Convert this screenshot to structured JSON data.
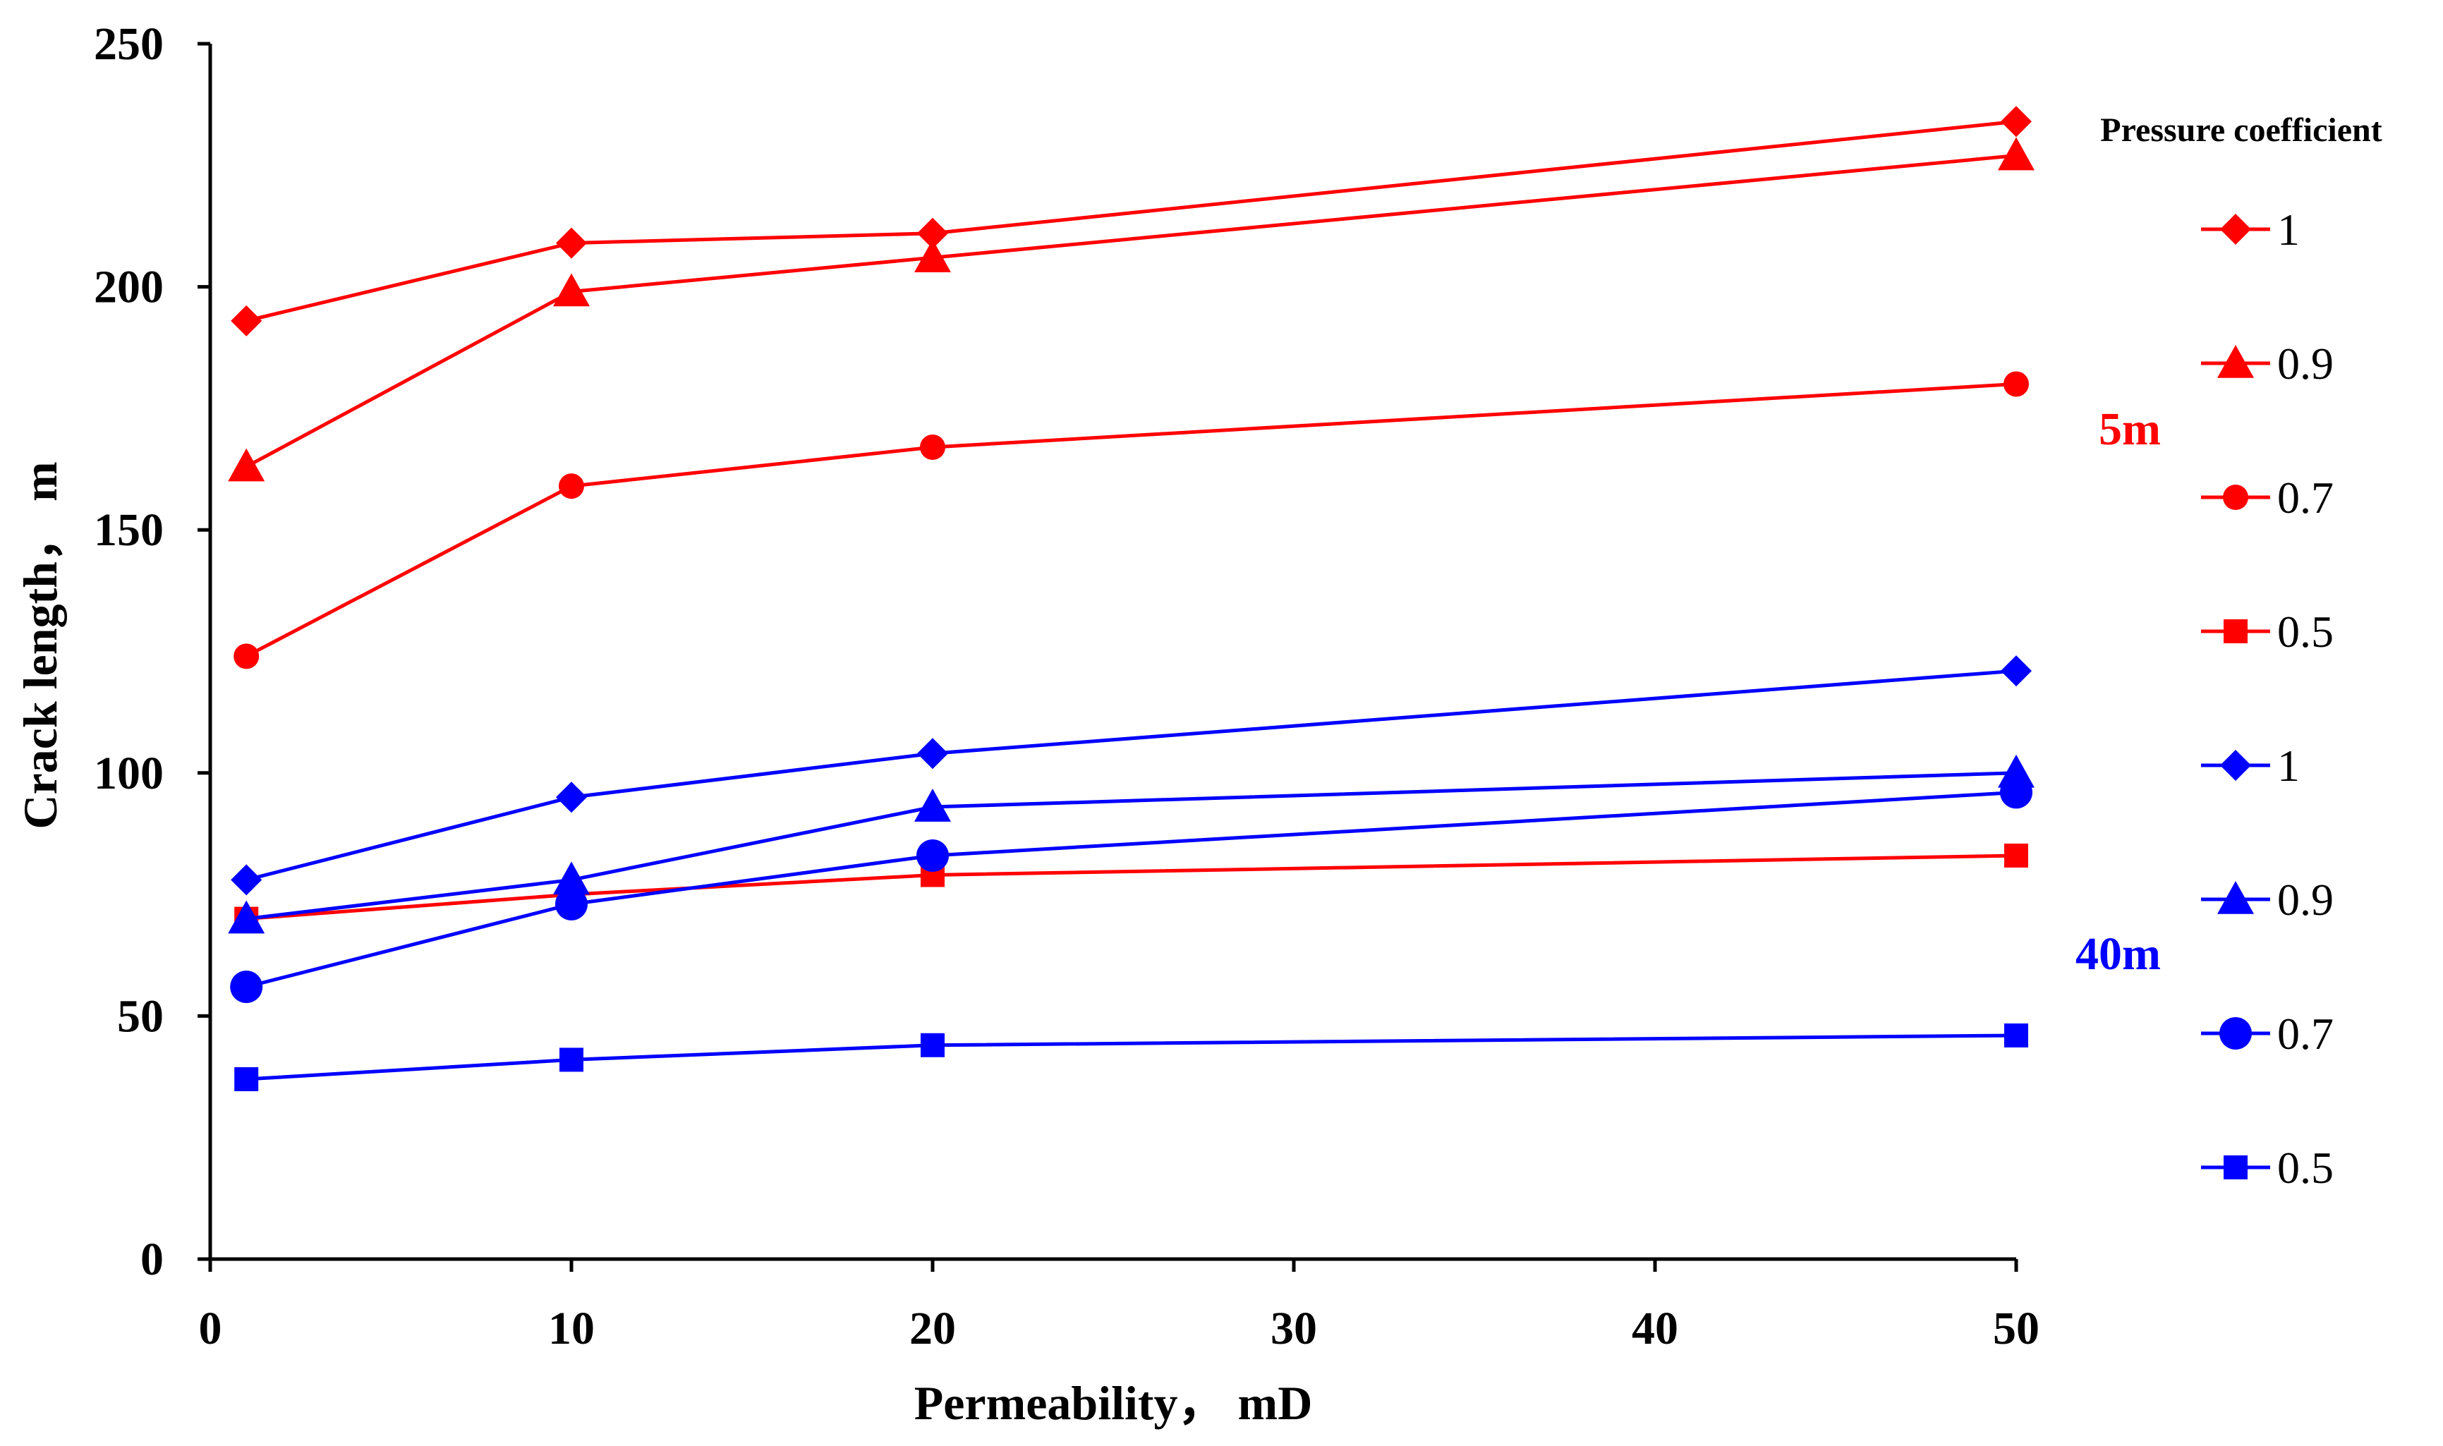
{
  "chart_data": {
    "type": "line",
    "title": "",
    "xlabel": "Permeability， mD",
    "ylabel": "Crack length， m",
    "xlim": [
      0,
      50
    ],
    "ylim": [
      0,
      250
    ],
    "xticks": [
      "0",
      "10",
      "20",
      "30",
      "40",
      "50"
    ],
    "yticks": [
      "0",
      "50",
      "100",
      "150",
      "200",
      "250"
    ],
    "x": [
      1,
      10,
      20,
      50
    ],
    "grid": false,
    "legend_title": "Pressure coefficient",
    "legend_position": "right",
    "group_labels": [
      {
        "text": "5m",
        "color": "#ff0000"
      },
      {
        "text": "40m",
        "color": "#0000ff"
      }
    ],
    "series": [
      {
        "name": "1",
        "group": "5m",
        "color": "#ff0000",
        "marker": "diamond",
        "values": [
          193,
          209,
          211,
          234
        ]
      },
      {
        "name": "0.9",
        "group": "5m",
        "color": "#ff0000",
        "marker": "triangle",
        "values": [
          163,
          199,
          206,
          227
        ]
      },
      {
        "name": "0.7",
        "group": "5m",
        "color": "#ff0000",
        "marker": "circle",
        "values": [
          124,
          159,
          167,
          180
        ]
      },
      {
        "name": "0.5",
        "group": "5m",
        "color": "#ff0000",
        "marker": "square",
        "values": [
          70,
          75,
          79,
          83
        ]
      },
      {
        "name": "1",
        "group": "40m",
        "color": "#0000ff",
        "marker": "diamond",
        "values": [
          78,
          95,
          104,
          121
        ]
      },
      {
        "name": "0.9",
        "group": "40m",
        "color": "#0000ff",
        "marker": "triangle",
        "values": [
          70,
          78,
          93,
          100
        ]
      },
      {
        "name": "0.7",
        "group": "40m",
        "color": "#0000ff",
        "marker": "circle-large",
        "values": [
          56,
          73,
          83,
          96
        ]
      },
      {
        "name": "0.5",
        "group": "40m",
        "color": "#0000ff",
        "marker": "square",
        "values": [
          37,
          41,
          44,
          46
        ]
      }
    ]
  }
}
